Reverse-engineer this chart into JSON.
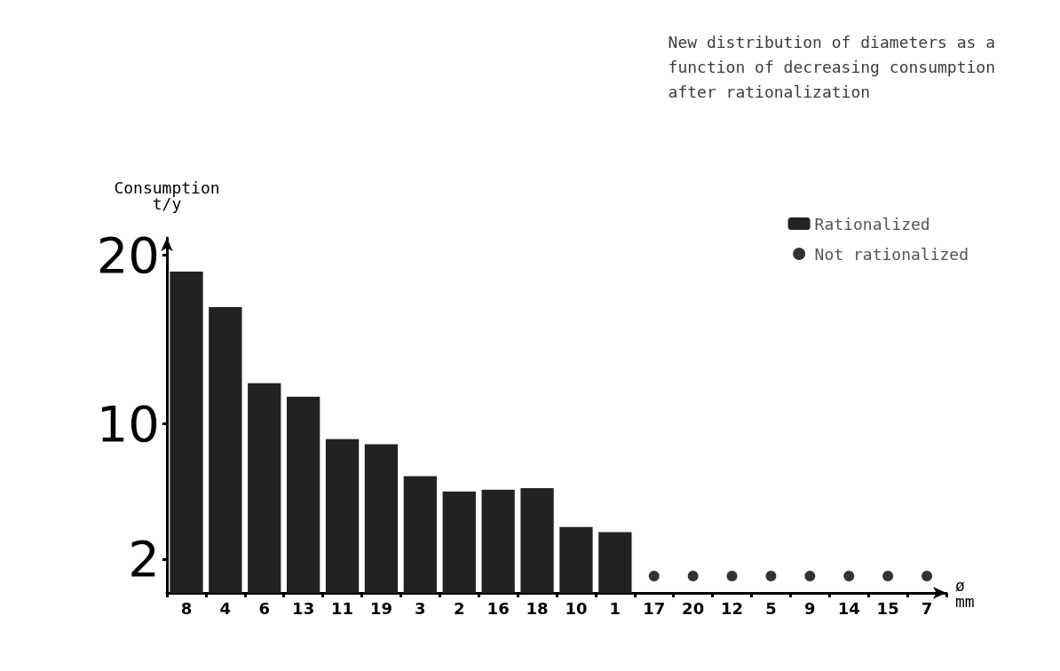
{
  "chart_data": {
    "type": "bar",
    "title": "New distribution of diameters as a\nfunction of decreasing consumption\nafter rationalization",
    "ylabel": "Consumption\nt/y",
    "xlabel": "ø\nmm",
    "categories": [
      "8",
      "4",
      "6",
      "13",
      "11",
      "19",
      "3",
      "2",
      "16",
      "18",
      "10",
      "1",
      "17",
      "20",
      "12",
      "5",
      "9",
      "14",
      "15",
      "7"
    ],
    "series": [
      {
        "name": "Rationalized",
        "color": "#222222",
        "values": [
          19,
          16.9,
          12.4,
          11.6,
          9.1,
          8.8,
          6.9,
          6,
          6.1,
          6.2,
          3.9,
          3.6,
          null,
          null,
          null,
          null,
          null,
          null,
          null,
          null
        ]
      },
      {
        "name": "Not rationalized",
        "type": "scatter",
        "color": "#000000",
        "marker": "circle",
        "values": [
          null,
          null,
          null,
          null,
          null,
          null,
          null,
          null,
          null,
          null,
          null,
          null,
          1,
          1,
          1,
          1,
          1,
          1,
          1,
          1
        ]
      }
    ],
    "ylim": [
      0,
      21
    ],
    "yticks": [
      2,
      10,
      20
    ],
    "grid": false,
    "legend": "top right"
  }
}
